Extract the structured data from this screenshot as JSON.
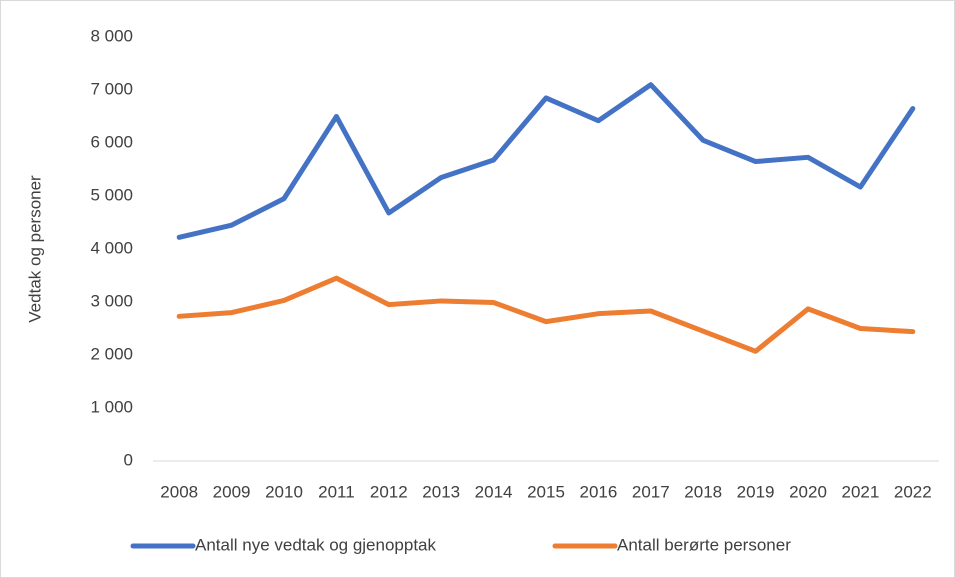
{
  "chart_data": {
    "type": "line",
    "ylabel": "Vedtak og personer",
    "categories": [
      "2008",
      "2009",
      "2010",
      "2011",
      "2012",
      "2013",
      "2014",
      "2015",
      "2016",
      "2017",
      "2018",
      "2019",
      "2020",
      "2021",
      "2022"
    ],
    "series": [
      {
        "name": "Antall nye vedtak og gjenopptak",
        "color": "#4472c4",
        "values": [
          4220,
          4450,
          4950,
          6500,
          4680,
          5350,
          5680,
          6850,
          6420,
          7100,
          6050,
          5650,
          5730,
          5170,
          6650
        ]
      },
      {
        "name": "Antall berørte personer",
        "color": "#ed7d31",
        "values": [
          2730,
          2800,
          3030,
          3450,
          2950,
          3020,
          2990,
          2630,
          2780,
          2830,
          2450,
          2070,
          2870,
          2500,
          2440
        ]
      }
    ],
    "ylim": [
      0,
      8000
    ],
    "yticks": [
      0,
      {
        "value": 1000,
        "label": "1 000"
      },
      {
        "value": 2000,
        "label": "2 000"
      },
      {
        "value": 3000,
        "label": "3 000"
      },
      {
        "value": 4000,
        "label": "4 000"
      },
      {
        "value": 5000,
        "label": "5 000"
      },
      {
        "value": 6000,
        "label": "6 000"
      },
      {
        "value": 7000,
        "label": "7 000"
      },
      {
        "value": 8000,
        "label": "8 000"
      }
    ],
    "grid": false,
    "legend": "bottom"
  }
}
